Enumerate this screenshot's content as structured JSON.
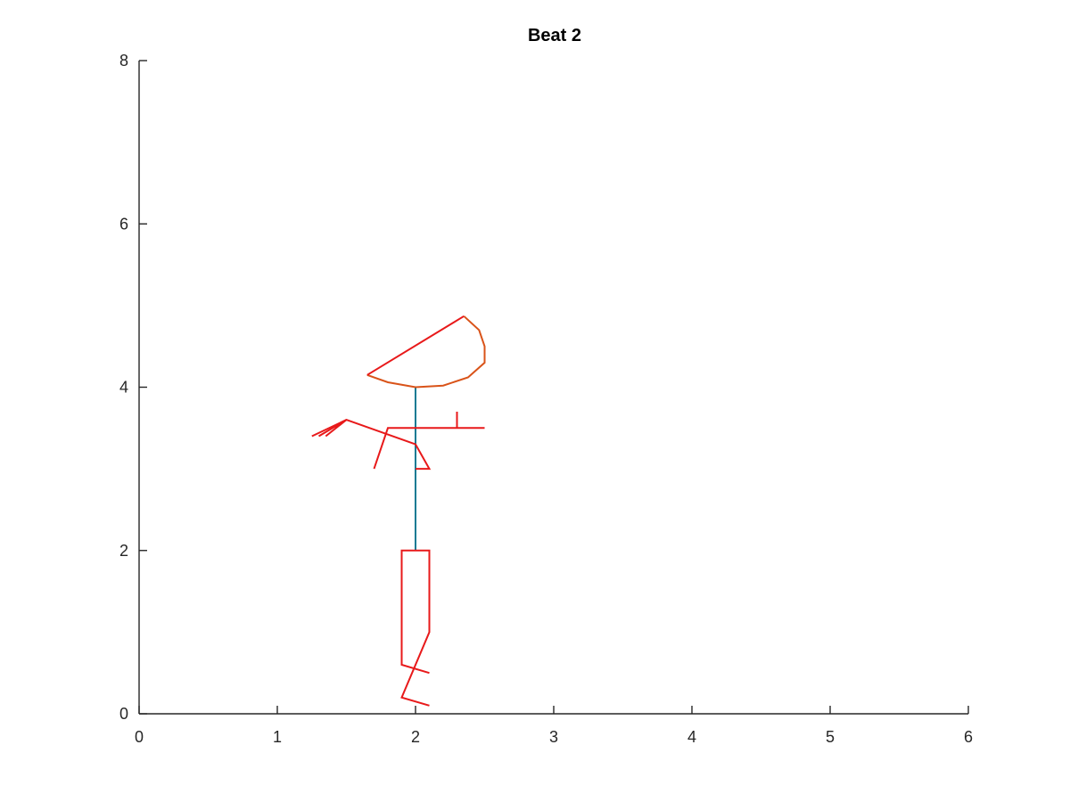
{
  "chart_data": {
    "type": "line",
    "title": "Beat 2",
    "xlabel": "",
    "ylabel": "",
    "xlim": [
      0,
      6
    ],
    "ylim": [
      0,
      8
    ],
    "xticks": [
      0,
      1,
      2,
      3,
      4,
      5,
      6
    ],
    "yticks": [
      0,
      2,
      4,
      6,
      8
    ],
    "grid": false,
    "legend": "none",
    "colors": {
      "limbs": "#e8191a",
      "head": "#d95319",
      "spine": "#0072bd"
    },
    "series": [
      {
        "name": "spine",
        "color": "#0e7a93",
        "points": [
          [
            2.0,
            2.0
          ],
          [
            2.0,
            4.0
          ]
        ]
      },
      {
        "name": "head-arc",
        "color": "#d95319",
        "points": [
          [
            1.65,
            4.15
          ],
          [
            1.8,
            4.06
          ],
          [
            2.0,
            4.0
          ],
          [
            2.2,
            4.02
          ],
          [
            2.38,
            4.12
          ],
          [
            2.5,
            4.3
          ],
          [
            2.5,
            4.5
          ],
          [
            2.46,
            4.7
          ],
          [
            2.35,
            4.87
          ]
        ]
      },
      {
        "name": "head-chord",
        "color": "#e8191a",
        "points": [
          [
            1.65,
            4.15
          ],
          [
            2.35,
            4.87
          ]
        ]
      },
      {
        "name": "left-arm",
        "color": "#e8191a",
        "points": [
          [
            1.7,
            3.0
          ],
          [
            1.8,
            3.5
          ],
          [
            2.5,
            3.5
          ]
        ]
      },
      {
        "name": "left-hand",
        "color": "#e8191a",
        "points": [
          [
            2.3,
            3.5
          ],
          [
            2.3,
            3.7
          ]
        ]
      },
      {
        "name": "right-arm",
        "color": "#e8191a",
        "points": [
          [
            2.0,
            3.0
          ],
          [
            2.1,
            3.0
          ],
          [
            2.0,
            3.3
          ],
          [
            1.5,
            3.6
          ],
          [
            1.25,
            3.4
          ]
        ]
      },
      {
        "name": "right-hand-fingers",
        "color": "#e8191a",
        "points": [
          [
            1.5,
            3.6
          ],
          [
            1.3,
            3.4
          ],
          [
            1.5,
            3.6
          ],
          [
            1.35,
            3.4
          ]
        ]
      },
      {
        "name": "leg-a",
        "color": "#e8191a",
        "points": [
          [
            2.0,
            2.0
          ],
          [
            1.9,
            2.0
          ],
          [
            1.9,
            0.6
          ],
          [
            2.1,
            0.5
          ]
        ]
      },
      {
        "name": "leg-b",
        "color": "#e8191a",
        "points": [
          [
            2.0,
            2.0
          ],
          [
            2.1,
            2.0
          ],
          [
            2.1,
            1.0
          ],
          [
            1.9,
            0.2
          ],
          [
            2.1,
            0.1
          ]
        ]
      }
    ]
  }
}
